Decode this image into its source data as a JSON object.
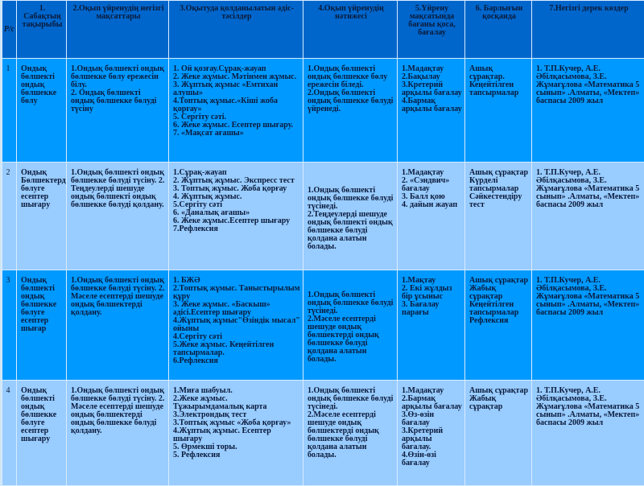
{
  "header": {
    "num": "Р/с",
    "c1": "1. Сабақтың тақырыбы",
    "c2": "2.Оқып үйренудің негізгі мақсаттары",
    "c3": "3.Оқытуда қолданылатын әдіс-тәсілдер",
    "c4": "4.Оқып үйренудің нәтижесі",
    "c5": "5.Үйрену мақсатында бағаны қоса, бағалау",
    "c6": "6. Барлығын қосқанда",
    "c7": "7.Негізгі дерек көздер"
  },
  "rows": [
    {
      "num": "1",
      "c1": "Ондық бөлшекті ондық бөлшекке бөлу",
      "c2": "1.Ондық бөлшекті ондық бөлшекке бөлу ережесін білу.\n2. Ондық бөлшекті ондық бөлшекке бөлуді түсіну",
      "c3": "1. Ой қозғау.Сұрақ-жауап\n2. Жеке жұмыс. Мәтінмен жұмыс.\n3. Жұптық жұмыс «Емтихан алушы»\n4.Топтық жұмыс.«Кіші жоба қорғау»\n5. Сергіту сәті.\n6. Жеке жұмыс. Есептер шығару.\n7. «Мақсат ағашы»",
      "c4": "1.Ондық бөлшекті ондық бөлшекке бөлу ережесін біледі.\n2.Ондық бөлшекті ондық бөлшекке бөлуді үйренеді.",
      "c5": "1.Мадақтау\n2.Бақылау\n3.Кретерий арқылы бағалау\n4.Бармақ арқылы бағалау",
      "c6": "Ашық сұрақтар.\nКеңейтілген тапсырмалар",
      "c7": "1. Т.П.Кучер, А.Е. Әбілқасымова, З.Е. Жұмағұлова «Математика 5 сынып» .Алматы, «Мектеп» баспасы 2009 жыл"
    },
    {
      "num": "2",
      "c1": "Ондық Бөлшектерді бөлуге есептер шығару",
      "c2": "1.Ондық бөлшекті ондық бөлшекке бөлуді түсіну. 2. Теңдеулерді шешуде ондық бөлшекті ондық бөлшекке бөлуді қолдану.",
      "c3": "1.Сұрақ-жауап\n2. Жұптық жұмыс. Экспресс тест\n3. Топтық жұмыс. Жоба қорғау\n4. Жұптық жұмыс.\n5.Сергіту сәті\n6. «Даналық ағашы»\n6. Жеке жұмыс.Есептер шығару\n7.Рефлексия",
      "c4": "1.Ондық бөлшекті ондық бөлшекке бөлуді түсінеді.\n2.Теңдеулерді шешуде ондық бөлшекті ондық бөлшекке бөлуді қолдана алатын болады.",
      "c5": "1.Мадақтау\n2. «Сэндвич» бағалау\n3. Балл қою\n4. дайын жауап",
      "c6": "Ашық сұрақтар\nКүрделі тапсырмалар\nСәйкестендіру тест",
      "c7": "1. Т.П.Кучер, А.Е. Әбілқасымова, З.Е. Жұмағұлова «Математика 5 сынып» .Алматы, «Мектеп» баспасы 2009 жыл"
    },
    {
      "num": "3",
      "c1": "Ондық бөлшекті ондық бөлшекке бөлуге есептер шығар",
      "c2": "1.Ондық бөлшекті ондық бөлшекке бөлуді түсіну. 2. Мәселе есептерді шешуде ондық бөлшектерді қолдану.",
      "c3": "1. БЖӘ\n2.Топтық жұмыс. Таныстырылым құру\n3. Жеке жұмыс. «Баскыш» әдісі.Есептер шығару\n4.Жұптық жұмыс\"Өзіндік мысал\" ойыны\n4.Сергіту сәті\n5.Жеке жұмыс. Кеңейтілген тапсырмалар.\n6.Рефлексия",
      "c4": "1.Ондық бөлшекті ондық бөлшекке бөлуді түсінеді.\n2.Мәселе есептерді шешуде ондық бөлшектерді ондық бөлшекке бөлуді қолдана алатын болады.",
      "c5": "1.Мақтау\n2. Екі жұлдыз бір ұсыныс\n3. Бағалау парағы",
      "c6": "Ашық сұрақтар\nЖабық сұрақтар\nКеңейтілген тапсырмалар\nРефлексия",
      "c7": "1. Т.П.Кучер, А.Е. Әбілқасымова, З.Е. Жұмағұлова «Математика 5 сынып» .Алматы, «Мектеп» баспасы 2009 жыл"
    },
    {
      "num": "4",
      "c1": "Ондық бөлшекті ондық бөлшекке бөлуге есептер шығару",
      "c2": "1.Ондық бөлшекті ондық бөлшекке бөлуді түсіну. 2. Мәселе есептерді шешуде ондық бөлшектерді ондық бөлшекке бөлуді қолдану.",
      "c3": "1.Миға шабуыл.\n2.Жеке жұмыс. Тұжырымдамалық карта\n3.Электрондық тест\n3.Топтық жұмыс «Жоба қорғау»\n4.Жұптық жұмыс. Есептер шығару\n5. Өрмекші торы.\n5. Рефлексия",
      "c4": "1.Ондық бөлшекті ондық бөлшекке бөлуді түсінеді.\n2.Мәселе есептерді шешуде ондық бөлшектерді ондық бөлшекке бөлуді қолдана алатын болады.",
      "c5": "1.Мадақтау\n2.Бармақ арқылы бағалау\n3.Өз-өзін бағалау\n3.Кретерий арқылы бағалау.\n4.Өзін-өзі бағалау",
      "c6": "Ашық сұрақтар\nЖабық сұрақтар",
      "c7": "1. Т.П.Кучер, А.Е. Әбілқасымова, З.Е. Жұмағұлова «Математика 5 сынып» .Алматы, «Мектеп» баспасы 2009 жыл"
    }
  ],
  "colors": {
    "header": "#0066cc",
    "row_dark": "#0099ff",
    "row_light": "#99ccff"
  }
}
